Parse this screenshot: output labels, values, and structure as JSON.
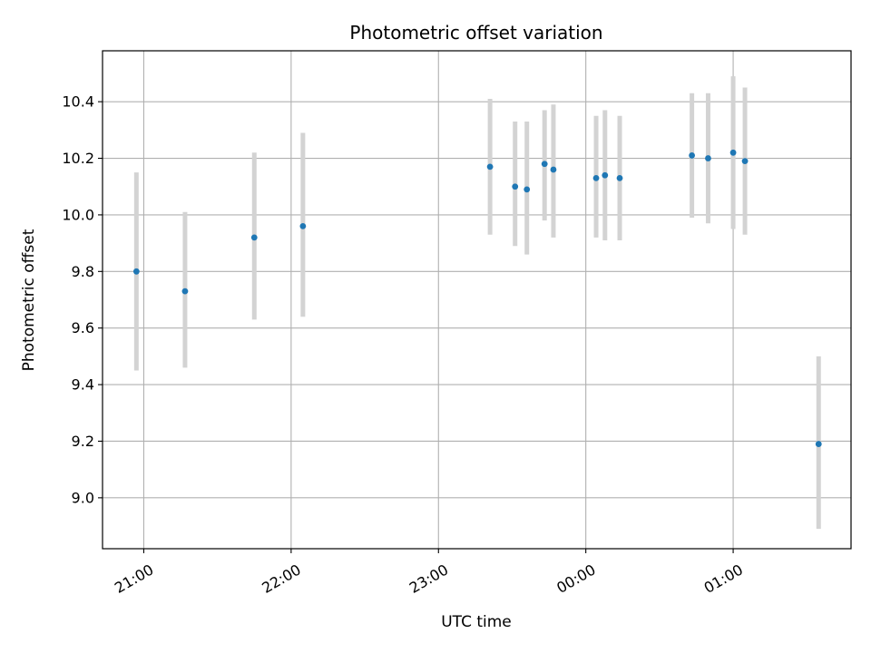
{
  "chart_data": {
    "type": "scatter",
    "title": "Photometric offset variation",
    "xlabel": "UTC time",
    "ylabel": "Photometric offset",
    "x_unit": "hours since 21:00 UTC",
    "xlim": [
      -0.28,
      4.8
    ],
    "ylim": [
      8.82,
      10.58
    ],
    "grid": true,
    "x_ticks": [
      {
        "value": 0,
        "label": "21:00"
      },
      {
        "value": 1,
        "label": "22:00"
      },
      {
        "value": 2,
        "label": "23:00"
      },
      {
        "value": 3,
        "label": "00:00"
      },
      {
        "value": 4,
        "label": "01:00"
      }
    ],
    "y_ticks": [
      {
        "value": 9.0,
        "label": "9.0"
      },
      {
        "value": 9.2,
        "label": "9.2"
      },
      {
        "value": 9.4,
        "label": "9.4"
      },
      {
        "value": 9.6,
        "label": "9.6"
      },
      {
        "value": 9.8,
        "label": "9.8"
      },
      {
        "value": 10.0,
        "label": "10.0"
      },
      {
        "value": 10.2,
        "label": "10.2"
      },
      {
        "value": 10.4,
        "label": "10.4"
      }
    ],
    "marker_color": "#1f77b4",
    "errorbar_color": "#d3d3d3",
    "series": [
      {
        "points": [
          {
            "x": -0.05,
            "y": 9.8,
            "ylo": 9.45,
            "yhi": 10.15
          },
          {
            "x": 0.28,
            "y": 9.73,
            "ylo": 9.46,
            "yhi": 10.01
          },
          {
            "x": 0.75,
            "y": 9.92,
            "ylo": 9.63,
            "yhi": 10.22
          },
          {
            "x": 1.08,
            "y": 9.96,
            "ylo": 9.64,
            "yhi": 10.29
          },
          {
            "x": 2.35,
            "y": 10.17,
            "ylo": 9.93,
            "yhi": 10.41
          },
          {
            "x": 2.52,
            "y": 10.1,
            "ylo": 9.89,
            "yhi": 10.33
          },
          {
            "x": 2.6,
            "y": 10.09,
            "ylo": 9.86,
            "yhi": 10.33
          },
          {
            "x": 2.72,
            "y": 10.18,
            "ylo": 9.98,
            "yhi": 10.37
          },
          {
            "x": 2.78,
            "y": 10.16,
            "ylo": 9.92,
            "yhi": 10.39
          },
          {
            "x": 3.07,
            "y": 10.13,
            "ylo": 9.92,
            "yhi": 10.35
          },
          {
            "x": 3.13,
            "y": 10.14,
            "ylo": 9.91,
            "yhi": 10.37
          },
          {
            "x": 3.23,
            "y": 10.13,
            "ylo": 9.91,
            "yhi": 10.35
          },
          {
            "x": 3.72,
            "y": 10.21,
            "ylo": 9.99,
            "yhi": 10.43
          },
          {
            "x": 3.83,
            "y": 10.2,
            "ylo": 9.97,
            "yhi": 10.43
          },
          {
            "x": 4.0,
            "y": 10.22,
            "ylo": 9.95,
            "yhi": 10.49
          },
          {
            "x": 4.08,
            "y": 10.19,
            "ylo": 9.93,
            "yhi": 10.45
          },
          {
            "x": 4.58,
            "y": 9.19,
            "ylo": 8.89,
            "yhi": 9.5
          }
        ]
      }
    ]
  }
}
